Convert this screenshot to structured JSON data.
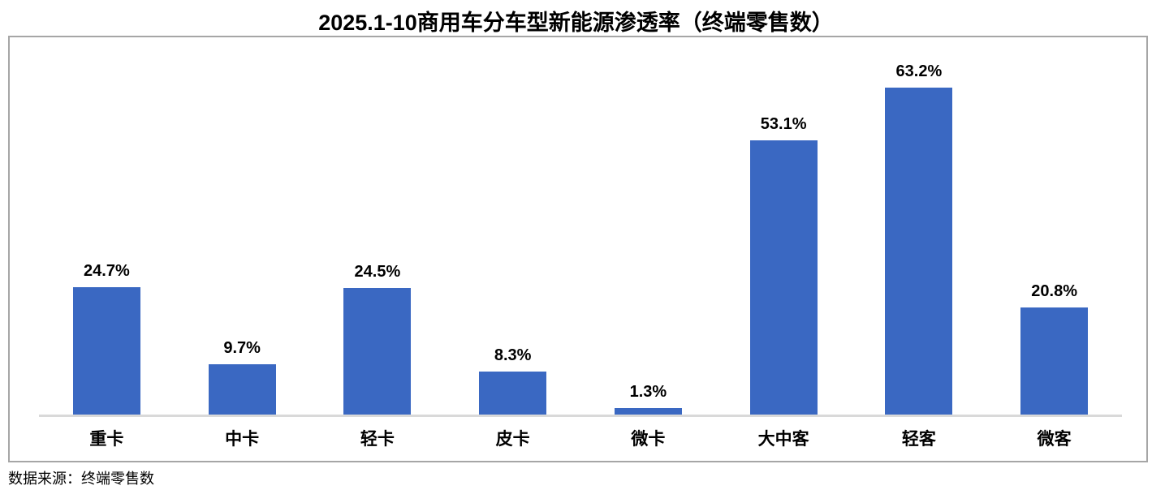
{
  "title": "2025.1-10商用车分车型新能源渗透率（终端零售数）",
  "source": "数据来源：终端零售数",
  "chart_data": {
    "type": "bar",
    "title": "2025.1-10商用车分车型新能源渗透率（终端零售数）",
    "categories": [
      "重卡",
      "中卡",
      "轻卡",
      "皮卡",
      "微卡",
      "大中客",
      "轻客",
      "微客"
    ],
    "values": [
      24.7,
      9.7,
      24.5,
      8.3,
      1.3,
      53.1,
      63.2,
      20.8
    ],
    "value_labels": [
      "24.7%",
      "9.7%",
      "24.5%",
      "8.3%",
      "1.3%",
      "53.1%",
      "63.2%",
      "20.8%"
    ],
    "xlabel": "",
    "ylabel": "",
    "ylim": [
      0,
      73
    ],
    "grid": false,
    "legend": false,
    "bar_color": "#3a68c2",
    "axis_line_color": "#d9d9d9",
    "border_color": "#a6a6a6",
    "source": "数据来源：终端零售数"
  }
}
